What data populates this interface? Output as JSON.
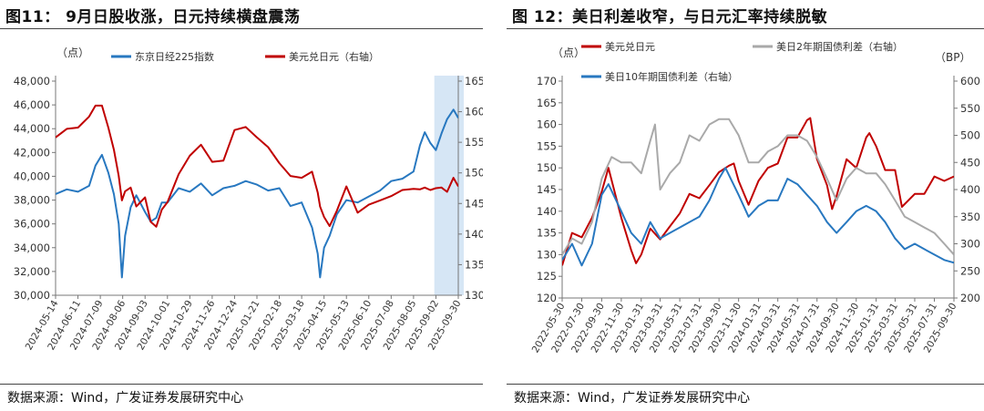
{
  "figures": [
    {
      "title": "图11：  9月日股收涨，日元持续横盘震荡",
      "source": "数据来源：Wind，广发证券发展研究中心"
    },
    {
      "title": "图 12：美日利差收窄，与日元汇率持续脱敏",
      "source": "数据来源：Wind，广发证券发展研究中心"
    }
  ],
  "chart_data": [
    {
      "type": "line",
      "title": "图11：  9月日股收涨，日元持续横盘震荡",
      "ylabel_left": "（点）",
      "ylabel_right": "",
      "ylim_left": [
        30000,
        48000
      ],
      "yticks_left": [
        "30,000",
        "32,000",
        "34,000",
        "36,000",
        "38,000",
        "40,000",
        "42,000",
        "44,000",
        "46,000",
        "48,000"
      ],
      "ylim_right": [
        130,
        165
      ],
      "yticks_right": [
        "130",
        "135",
        "140",
        "145",
        "150",
        "155",
        "160",
        "165"
      ],
      "x_ticks": [
        "2024-05-14",
        "2024-06-11",
        "2024-07-09",
        "2024-08-06",
        "2024-09-03",
        "2024-10-01",
        "2024-10-29",
        "2024-11-26",
        "2024-12-24",
        "2025-01-21",
        "2025-02-18",
        "2025-03-18",
        "2025-04-15",
        "2025-05-13",
        "2025-06-10",
        "2025-07-08",
        "2025-08-05",
        "2025-09-02",
        "2025-09-30"
      ],
      "legend_placement": "top",
      "highlight_range": [
        "2025-08-31",
        "2025-09-30"
      ],
      "highlight_color": "#d6e6f5",
      "series": [
        {
          "name": "东京日经225指数",
          "axis": "left",
          "color": "#2878c0",
          "x": [
            "2024-05-14",
            "2024-05-28",
            "2024-06-11",
            "2024-06-25",
            "2024-07-03",
            "2024-07-11",
            "2024-07-19",
            "2024-07-26",
            "2024-08-01",
            "2024-08-05",
            "2024-08-09",
            "2024-08-16",
            "2024-08-23",
            "2024-09-03",
            "2024-09-10",
            "2024-09-17",
            "2024-09-24",
            "2024-10-01",
            "2024-10-15",
            "2024-10-29",
            "2024-11-12",
            "2024-11-26",
            "2024-12-10",
            "2024-12-24",
            "2025-01-07",
            "2025-01-21",
            "2025-02-04",
            "2025-02-18",
            "2025-03-04",
            "2025-03-18",
            "2025-03-31",
            "2025-04-07",
            "2025-04-10",
            "2025-04-15",
            "2025-04-22",
            "2025-05-01",
            "2025-05-13",
            "2025-05-27",
            "2025-06-10",
            "2025-06-24",
            "2025-07-08",
            "2025-07-22",
            "2025-08-05",
            "2025-08-13",
            "2025-08-19",
            "2025-08-26",
            "2025-09-02",
            "2025-09-09",
            "2025-09-16",
            "2025-09-24",
            "2025-09-30"
          ],
          "y": [
            38500,
            38900,
            38700,
            39200,
            40900,
            41800,
            40300,
            38500,
            36000,
            31500,
            35000,
            37400,
            38400,
            37000,
            36200,
            36500,
            37800,
            37800,
            39000,
            38700,
            39400,
            38400,
            39000,
            39200,
            39600,
            39300,
            38800,
            39000,
            37500,
            37800,
            35700,
            33500,
            31500,
            34000,
            35000,
            36800,
            38000,
            37800,
            38300,
            38800,
            39600,
            39800,
            40400,
            42600,
            43700,
            42800,
            42200,
            43600,
            44800,
            45600,
            44900
          ]
        },
        {
          "name": "美元兑日元（右轴）",
          "axis": "right",
          "color": "#c00000",
          "x": [
            "2024-05-14",
            "2024-05-28",
            "2024-06-11",
            "2024-06-25",
            "2024-07-03",
            "2024-07-11",
            "2024-07-19",
            "2024-07-26",
            "2024-08-01",
            "2024-08-05",
            "2024-08-09",
            "2024-08-16",
            "2024-08-23",
            "2024-09-03",
            "2024-09-10",
            "2024-09-17",
            "2024-09-24",
            "2024-10-01",
            "2024-10-15",
            "2024-10-29",
            "2024-11-12",
            "2024-11-26",
            "2024-12-10",
            "2024-12-24",
            "2025-01-07",
            "2025-01-21",
            "2025-02-04",
            "2025-02-18",
            "2025-03-04",
            "2025-03-18",
            "2025-03-31",
            "2025-04-07",
            "2025-04-10",
            "2025-04-15",
            "2025-04-22",
            "2025-05-01",
            "2025-05-13",
            "2025-05-27",
            "2025-06-10",
            "2025-06-24",
            "2025-07-08",
            "2025-07-22",
            "2025-08-05",
            "2025-08-13",
            "2025-08-19",
            "2025-08-26",
            "2025-09-02",
            "2025-09-09",
            "2025-09-16",
            "2025-09-24",
            "2025-09-30"
          ],
          "y": [
            155.8,
            157.2,
            157.4,
            159.2,
            161.0,
            161.0,
            157.4,
            153.8,
            149.5,
            145.5,
            147.0,
            147.6,
            144.5,
            146.0,
            142.0,
            141.2,
            144.0,
            145.2,
            149.8,
            152.8,
            154.6,
            151.8,
            152.0,
            157.0,
            157.5,
            155.8,
            154.2,
            151.6,
            149.5,
            149.2,
            150.2,
            146.8,
            144.5,
            142.8,
            141.3,
            143.8,
            147.8,
            143.5,
            144.8,
            145.5,
            146.2,
            147.2,
            147.4,
            147.3,
            147.6,
            147.2,
            147.5,
            147.6,
            146.9,
            149.2,
            147.8
          ]
        }
      ]
    },
    {
      "type": "line",
      "title": "图 12：美日利差收窄，与日元汇率持续脱敏",
      "ylabel_left": "（点）",
      "ylabel_right": "（BP）",
      "ylim_left": [
        120,
        170
      ],
      "yticks_left": [
        "120",
        "125",
        "130",
        "135",
        "140",
        "145",
        "150",
        "155",
        "160",
        "165",
        "170"
      ],
      "ylim_right": [
        200,
        600
      ],
      "yticks_right": [
        "200",
        "250",
        "300",
        "350",
        "400",
        "450",
        "500",
        "550",
        "600"
      ],
      "x_ticks": [
        "2022-05-30",
        "2022-07-30",
        "2022-09-30",
        "2022-11-30",
        "2023-01-31",
        "2023-03-31",
        "2023-05-31",
        "2023-07-31",
        "2023-09-30",
        "2023-11-30",
        "2024-01-31",
        "2024-03-31",
        "2024-05-31",
        "2024-07-31",
        "2024-09-30",
        "2024-11-30",
        "2025-01-31",
        "2025-03-31",
        "2025-05-31",
        "2025-07-31",
        "2025-09-30"
      ],
      "legend_placement": "top",
      "series": [
        {
          "name": "美元兑日元",
          "axis": "left",
          "color": "#c00000",
          "x": [
            "2022-05-30",
            "2022-06-30",
            "2022-07-30",
            "2022-08-31",
            "2022-09-30",
            "2022-10-21",
            "2022-11-30",
            "2022-12-31",
            "2023-01-15",
            "2023-01-31",
            "2023-02-28",
            "2023-03-31",
            "2023-04-30",
            "2023-05-31",
            "2023-06-30",
            "2023-07-31",
            "2023-08-31",
            "2023-09-30",
            "2023-10-31",
            "2023-11-15",
            "2023-11-30",
            "2023-12-31",
            "2024-01-31",
            "2024-02-29",
            "2024-03-31",
            "2024-04-30",
            "2024-05-31",
            "2024-06-30",
            "2024-07-10",
            "2024-07-31",
            "2024-08-31",
            "2024-09-16",
            "2024-09-30",
            "2024-10-31",
            "2024-11-30",
            "2024-12-31",
            "2025-01-10",
            "2025-01-31",
            "2025-02-28",
            "2025-03-31",
            "2025-04-21",
            "2025-05-31",
            "2025-06-30",
            "2025-07-31",
            "2025-08-31",
            "2025-09-30"
          ],
          "y": [
            127.5,
            135.0,
            134.0,
            138.5,
            144.5,
            150.0,
            138.5,
            131.0,
            128.0,
            130.0,
            136.0,
            133.5,
            136.5,
            139.5,
            144.0,
            143.0,
            146.0,
            149.0,
            150.5,
            151.0,
            147.0,
            141.5,
            147.0,
            150.0,
            151.0,
            157.0,
            157.0,
            161.0,
            161.5,
            152.0,
            146.0,
            140.5,
            143.5,
            152.0,
            150.0,
            157.0,
            158.0,
            155.0,
            149.5,
            149.5,
            141.0,
            144.0,
            144.0,
            148.0,
            147.0,
            148.0
          ]
        },
        {
          "name": "美日2年期国债利差（右轴）",
          "axis": "right",
          "color": "#a9a9a9",
          "x": [
            "2022-05-30",
            "2022-06-30",
            "2022-07-30",
            "2022-08-31",
            "2022-09-30",
            "2022-10-31",
            "2022-11-30",
            "2022-12-31",
            "2023-01-31",
            "2023-02-28",
            "2023-03-15",
            "2023-03-31",
            "2023-04-30",
            "2023-05-31",
            "2023-06-30",
            "2023-07-31",
            "2023-08-31",
            "2023-09-30",
            "2023-10-31",
            "2023-11-30",
            "2023-12-31",
            "2024-01-31",
            "2024-02-29",
            "2024-03-31",
            "2024-04-30",
            "2024-05-31",
            "2024-06-30",
            "2024-07-31",
            "2024-08-31",
            "2024-09-30",
            "2024-10-31",
            "2024-11-30",
            "2024-12-31",
            "2025-01-31",
            "2025-02-28",
            "2025-03-31",
            "2025-04-30",
            "2025-05-31",
            "2025-06-30",
            "2025-07-31",
            "2025-08-31",
            "2025-09-30"
          ],
          "y": [
            280,
            310,
            300,
            340,
            420,
            460,
            450,
            450,
            430,
            490,
            520,
            400,
            430,
            450,
            500,
            490,
            520,
            530,
            530,
            500,
            450,
            450,
            470,
            480,
            500,
            500,
            490,
            460,
            420,
            380,
            420,
            440,
            430,
            430,
            410,
            380,
            350,
            340,
            330,
            320,
            300,
            280
          ]
        },
        {
          "name": "美日10年期国债利差（右轴）",
          "axis": "right",
          "color": "#2878c0",
          "x": [
            "2022-05-30",
            "2022-06-30",
            "2022-07-30",
            "2022-08-31",
            "2022-09-30",
            "2022-10-21",
            "2022-11-30",
            "2022-12-31",
            "2023-01-31",
            "2023-02-28",
            "2023-03-31",
            "2023-04-30",
            "2023-05-31",
            "2023-06-30",
            "2023-07-31",
            "2023-08-31",
            "2023-09-30",
            "2023-10-20",
            "2023-11-30",
            "2023-12-31",
            "2024-01-31",
            "2024-02-29",
            "2024-03-31",
            "2024-04-30",
            "2024-05-31",
            "2024-06-30",
            "2024-07-31",
            "2024-08-31",
            "2024-09-30",
            "2024-10-31",
            "2024-11-30",
            "2024-12-31",
            "2025-01-31",
            "2025-02-28",
            "2025-03-31",
            "2025-04-30",
            "2025-05-31",
            "2025-06-30",
            "2025-07-31",
            "2025-08-31",
            "2025-09-30"
          ],
          "y": [
            270,
            300,
            260,
            300,
            390,
            410,
            360,
            320,
            300,
            340,
            310,
            320,
            330,
            340,
            350,
            380,
            420,
            440,
            390,
            350,
            370,
            380,
            380,
            420,
            410,
            390,
            370,
            340,
            320,
            340,
            360,
            370,
            360,
            340,
            310,
            290,
            300,
            290,
            280,
            270,
            265
          ]
        }
      ]
    }
  ]
}
